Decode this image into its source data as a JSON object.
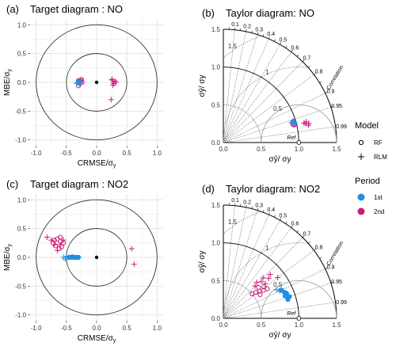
{
  "panels": {
    "a": {
      "label": "(a)",
      "title": "Target diagram : NO",
      "xlabel": "CRMSE/σ",
      "xlabel_sub": "y",
      "ylabel": "MBE/σ",
      "ylabel_sub": "y"
    },
    "b": {
      "label": "(b)",
      "title": "Taylor diagram: NO",
      "xlabel": "σ",
      "xlabel_sup": "^",
      "xlabel_rest": "y/ σy",
      "ylabel": "σy/ σy",
      "corr_title": "Correlation",
      "ref_label": "Ref"
    },
    "c": {
      "label": "(c)",
      "title": "Target diagram : NO2",
      "xlabel": "CRMSE/σ",
      "xlabel_sub": "y",
      "ylabel": "MBE/σ",
      "ylabel_sub": "y"
    },
    "d": {
      "label": "(d)",
      "title": "Taylor diagram: NO2",
      "corr_title": "Correlation",
      "ref_label": "Ref"
    }
  },
  "axis_text": {
    "taylor_x": "σŷ/ σy",
    "taylor_y": "σŷ/ σy"
  },
  "legend": {
    "model_title": "Model",
    "model_items": [
      "RF",
      "RLM"
    ],
    "period_title": "Period",
    "period_items": [
      "1st",
      "2nd"
    ]
  },
  "colors": {
    "period_1st": "#1f8fe0",
    "period_2nd": "#cc1a78",
    "grid": "#dedede",
    "panel_bg": "#ffffff",
    "circle": "#333333",
    "corr_dotted": "#555555",
    "rmsd_arc": "#999999",
    "std_dotted_blue": "#5555aa"
  },
  "chart_data": [
    {
      "id": "a",
      "type": "scatter",
      "title": "Target diagram : NO",
      "xlabel": "CRMSE/σy",
      "ylabel": "MBE/σy",
      "xlim": [
        -1.1,
        1.1
      ],
      "ylim": [
        -1.1,
        1.1
      ],
      "xticks": [
        "-1.0",
        "-0.5",
        "0.0",
        "0.5",
        "1.0"
      ],
      "yticks": [
        "-1.0",
        "-0.5",
        "0.0",
        "0.5",
        "1.0"
      ],
      "circles": [
        0.5,
        1.0
      ],
      "series": [
        {
          "model": "RF",
          "period": "2nd",
          "points": [
            [
              -0.3,
              0.03
            ],
            [
              -0.28,
              0.02
            ],
            [
              -0.27,
              -0.01
            ],
            [
              -0.25,
              0.05
            ],
            [
              -0.3,
              -0.06
            ],
            [
              -0.24,
              0.0
            ],
            [
              -0.26,
              0.03
            ]
          ]
        },
        {
          "model": "RLM",
          "period": "2nd",
          "points": [
            [
              0.25,
              0.05
            ],
            [
              0.3,
              0.02
            ],
            [
              0.27,
              -0.05
            ],
            [
              0.32,
              0.0
            ],
            [
              0.28,
              -0.02
            ],
            [
              0.26,
              0.04
            ],
            [
              0.24,
              -0.3
            ]
          ]
        },
        {
          "model": "RF",
          "period": "1st",
          "points": [
            [
              -0.3,
              -0.01
            ],
            [
              -0.29,
              0.01
            ]
          ]
        },
        {
          "model": "RLM",
          "period": "1st",
          "points": [
            [
              -0.33,
              -0.02
            ],
            [
              -0.32,
              0.0
            ],
            [
              -0.3,
              -0.01
            ],
            [
              -0.26,
              0.02
            ],
            [
              -0.28,
              -0.03
            ]
          ]
        }
      ]
    },
    {
      "id": "b",
      "type": "scatter",
      "title": "Taylor diagram: NO",
      "xlabel": "σŷ/ σy",
      "ylabel": "σŷ/ σy",
      "xlim": [
        0,
        1.5
      ],
      "ylim": [
        0,
        1.5
      ],
      "xticks": [
        "0.0",
        "0.5",
        "1.0",
        "1.5"
      ],
      "yticks": [
        "0.0",
        "0.5",
        "1.0",
        "1.5"
      ],
      "correlation_ticks": [
        "0.1",
        "0.2",
        "0.3",
        "0.4",
        "0.5",
        "0.6",
        "0.7",
        "0.8",
        "0.9",
        "0.95",
        "0.99"
      ],
      "rmsd_labels": [
        "0.5",
        "1",
        "1.5"
      ],
      "series": [
        {
          "model": "RF",
          "period": "2nd",
          "points": [
            [
              0.97,
              0.96
            ],
            [
              0.96,
              0.97
            ],
            [
              0.98,
              0.97
            ],
            [
              0.95,
              0.965
            ]
          ]
        },
        {
          "model": "RLM",
          "period": "2nd",
          "points": [
            [
              1.12,
              0.975
            ],
            [
              1.15,
              0.98
            ],
            [
              1.13,
              0.97
            ],
            [
              1.1,
              0.972
            ],
            [
              1.16,
              0.976
            ]
          ]
        },
        {
          "model": "RF",
          "period": "1st",
          "points": [
            [
              0.98,
              0.965
            ]
          ]
        },
        {
          "model": "RLM",
          "period": "1st",
          "points": [
            [
              0.96,
              0.955
            ],
            [
              0.94,
              0.96
            ],
            [
              0.97,
              0.958
            ]
          ]
        }
      ]
    },
    {
      "id": "c",
      "type": "scatter",
      "title": "Target diagram : NO2",
      "xlabel": "CRMSE/σy",
      "ylabel": "MBE/σy",
      "xlim": [
        -1.1,
        1.1
      ],
      "ylim": [
        -1.1,
        1.1
      ],
      "xticks": [
        "-1.0",
        "-0.5",
        "0.0",
        "0.5",
        "1.0"
      ],
      "yticks": [
        "-1.0",
        "-0.5",
        "0.0",
        "0.5",
        "1.0"
      ],
      "circles": [
        0.5,
        1.0
      ],
      "series": [
        {
          "model": "RF",
          "period": "2nd",
          "points": [
            [
              -0.7,
              0.3
            ],
            [
              -0.65,
              0.32
            ],
            [
              -0.6,
              0.28
            ],
            [
              -0.55,
              0.25
            ],
            [
              -0.68,
              0.2
            ],
            [
              -0.62,
              0.15
            ],
            [
              -0.72,
              0.25
            ],
            [
              -0.6,
              0.35
            ],
            [
              -0.58,
              0.18
            ]
          ]
        },
        {
          "model": "RLM",
          "period": "2nd",
          "points": [
            [
              -0.82,
              0.35
            ],
            [
              -0.75,
              0.3
            ],
            [
              -0.7,
              0.22
            ],
            [
              -0.65,
              0.12
            ],
            [
              -0.6,
              0.22
            ],
            [
              -0.55,
              0.3
            ],
            [
              0.58,
              0.15
            ],
            [
              0.62,
              -0.12
            ]
          ]
        },
        {
          "model": "RF",
          "period": "1st",
          "points": [
            [
              -0.45,
              0.0
            ],
            [
              -0.42,
              0.0
            ],
            [
              -0.4,
              0.01
            ],
            [
              -0.38,
              0.0
            ],
            [
              -0.36,
              0.0
            ],
            [
              -0.33,
              0.0
            ],
            [
              -0.3,
              0.0
            ]
          ]
        },
        {
          "model": "RLM",
          "period": "1st",
          "points": [
            [
              -0.55,
              0.0
            ],
            [
              -0.52,
              -0.03
            ],
            [
              -0.5,
              0.02
            ],
            [
              -0.47,
              0.0
            ]
          ]
        }
      ]
    },
    {
      "id": "d",
      "type": "scatter",
      "title": "Taylor diagram: NO2",
      "xlabel": "σŷ/ σy",
      "ylabel": "σŷ/ σy",
      "xlim": [
        0,
        1.5
      ],
      "ylim": [
        0,
        1.5
      ],
      "xticks": [
        "0.0",
        "0.5",
        "1.0",
        "1.5"
      ],
      "yticks": [
        "0.0",
        "0.5",
        "1.0",
        "1.5"
      ],
      "correlation_ticks": [
        "0.1",
        "0.2",
        "0.3",
        "0.4",
        "0.5",
        "0.6",
        "0.7",
        "0.8",
        "0.9",
        "0.95",
        "0.99"
      ],
      "rmsd_labels": [
        "0.5",
        "1",
        "1.5"
      ],
      "series": [
        {
          "model": "RF",
          "period": "2nd",
          "points": [
            [
              0.6,
              0.8
            ],
            [
              0.65,
              0.82
            ],
            [
              0.55,
              0.78
            ],
            [
              0.5,
              0.76
            ],
            [
              0.7,
              0.83
            ],
            [
              0.62,
              0.75
            ],
            [
              0.58,
              0.84
            ],
            [
              0.68,
              0.79
            ]
          ]
        },
        {
          "model": "RLM",
          "period": "2nd",
          "points": [
            [
              0.6,
              0.7
            ],
            [
              0.7,
              0.72
            ],
            [
              0.8,
              0.75
            ],
            [
              0.65,
              0.68
            ],
            [
              0.75,
              0.7
            ],
            [
              0.85,
              0.73
            ],
            [
              0.72,
              0.77
            ],
            [
              0.9,
              0.8
            ]
          ]
        },
        {
          "model": "RF",
          "period": "1st",
          "points": [
            [
              0.85,
              0.9
            ],
            [
              0.88,
              0.92
            ],
            [
              0.9,
              0.93
            ],
            [
              0.87,
              0.94
            ],
            [
              0.92,
              0.95
            ],
            [
              0.89,
              0.96
            ]
          ]
        },
        {
          "model": "RLM",
          "period": "1st",
          "points": [
            [
              0.8,
              0.88
            ],
            [
              0.83,
              0.9
            ],
            [
              0.86,
              0.89
            ]
          ]
        }
      ]
    }
  ]
}
